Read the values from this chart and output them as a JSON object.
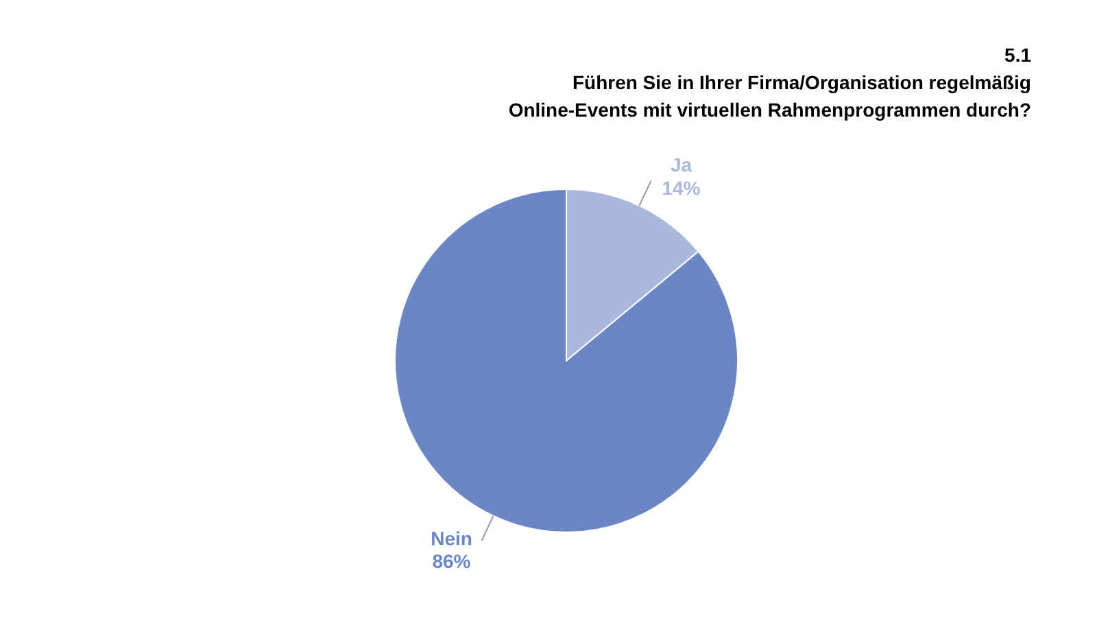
{
  "chart_data": {
    "type": "pie",
    "title": "5.1",
    "subtitle": "Führen Sie in Ihrer Firma/Organisation regelmäßig\nOnline-Events mit virtuellen Rahmenprogrammen durch?",
    "categories": [
      "Ja",
      "Nein"
    ],
    "values": [
      14,
      86
    ],
    "colors": [
      "#a9b8dc",
      "#6a86c4"
    ],
    "value_labels": [
      "14%",
      "86%"
    ],
    "legend": false
  }
}
